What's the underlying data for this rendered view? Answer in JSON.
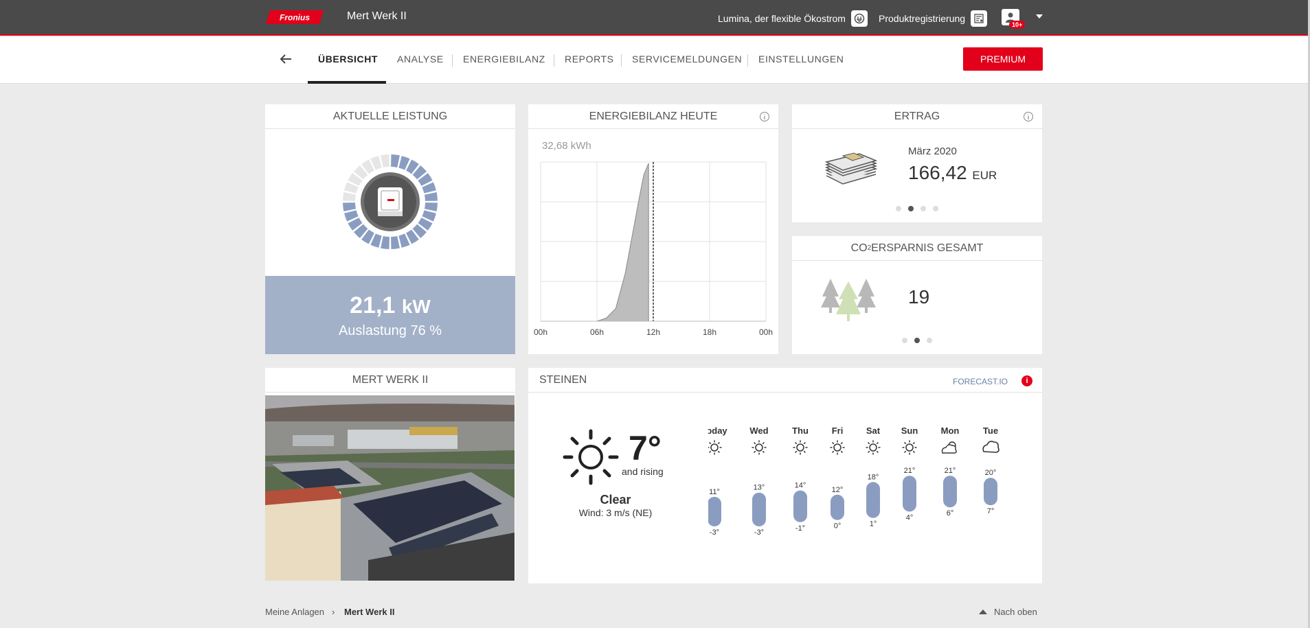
{
  "header": {
    "brand": "Fronius",
    "plant_name": "Mert Werk II",
    "lumina_label": "Lumina, der flexible Ökostrom",
    "lumina_icon": "power-plug-icon",
    "product_label": "Produktregistrierung",
    "product_icon": "registration-form-icon",
    "user_icon": "user-icon",
    "notification_count": "10+",
    "brand_color": "#e2001a"
  },
  "nav": {
    "back_icon": "arrow-left-icon",
    "tabs": [
      {
        "label": "ÜBERSICHT",
        "active": true
      },
      {
        "label": "ANALYSE"
      },
      {
        "label": "ENERGIEBILANZ"
      },
      {
        "label": "REPORTS"
      },
      {
        "label": "SERVICEMELDUNGEN"
      },
      {
        "label": "EINSTELLUNGEN"
      }
    ],
    "premium_label": "PREMIUM"
  },
  "leistung": {
    "title": "AKTUELLE LEISTUNG",
    "value": "21,1",
    "unit": "kW",
    "utilization": "Auslastung 76 %",
    "utilization_fraction": 0.76,
    "gauge_color": "#8a9dc1"
  },
  "energiebilanz": {
    "title": "ENERGIEBILANZ HEUTE",
    "total": "32,68 kWh",
    "chart_data": {
      "type": "area",
      "x_ticks": [
        "00h",
        "06h",
        "12h",
        "18h",
        "00h"
      ],
      "x_hours": [
        0,
        6,
        7,
        8,
        9,
        10,
        10.5,
        11,
        11.5
      ],
      "relative_y": [
        0,
        0,
        0.02,
        0.08,
        0.3,
        0.62,
        0.78,
        0.93,
        1.0
      ],
      "now_hour": 12,
      "grid": true
    }
  },
  "ertrag": {
    "title": "ERTRAG",
    "period": "März 2020",
    "value": "166,42",
    "unit": "EUR",
    "icon": "money-stack-icon",
    "page_index": 1,
    "page_count": 4
  },
  "co2": {
    "title_pre": "CO",
    "title_sub": "2",
    "title_post": " ERSPARNIS GESAMT",
    "value": "19",
    "icon": "trees-icon",
    "page_index": 1,
    "page_count": 3
  },
  "werk": {
    "title": "MERT WERK II"
  },
  "weather": {
    "location": "STEINEN",
    "provider": "FORECAST.IO",
    "current_temp": "7°",
    "trend": "and rising",
    "condition": "Clear",
    "wind": "Wind: 3 m/s (NE)",
    "bar_color": "#8a9dc1",
    "days": [
      {
        "day": "Today",
        "icon": "sun-icon",
        "high": "11°",
        "low": "-3°",
        "high_val": 11,
        "low_val": -3
      },
      {
        "day": "Wed",
        "icon": "sun-icon",
        "high": "13°",
        "low": "-3°",
        "high_val": 13,
        "low_val": -3
      },
      {
        "day": "Thu",
        "icon": "sun-icon",
        "high": "14°",
        "low": "-1°",
        "high_val": 14,
        "low_val": -1
      },
      {
        "day": "Fri",
        "icon": "sun-icon",
        "high": "12°",
        "low": "0°",
        "high_val": 12,
        "low_val": 0
      },
      {
        "day": "Sat",
        "icon": "sun-icon",
        "high": "18°",
        "low": "1°",
        "high_val": 18,
        "low_val": 1
      },
      {
        "day": "Sun",
        "icon": "sun-icon",
        "high": "21°",
        "low": "4°",
        "high_val": 21,
        "low_val": 4
      },
      {
        "day": "Mon",
        "icon": "partly-cloudy-icon",
        "high": "21°",
        "low": "6°",
        "high_val": 21,
        "low_val": 6
      },
      {
        "day": "Tue",
        "icon": "cloud-icon",
        "high": "20°",
        "low": "7°",
        "high_val": 20,
        "low_val": 7
      }
    ]
  },
  "footer": {
    "crumb_home": "Meine Anlagen",
    "crumb_sep": "›",
    "crumb_current": "Mert Werk II",
    "to_top": "Nach oben"
  }
}
